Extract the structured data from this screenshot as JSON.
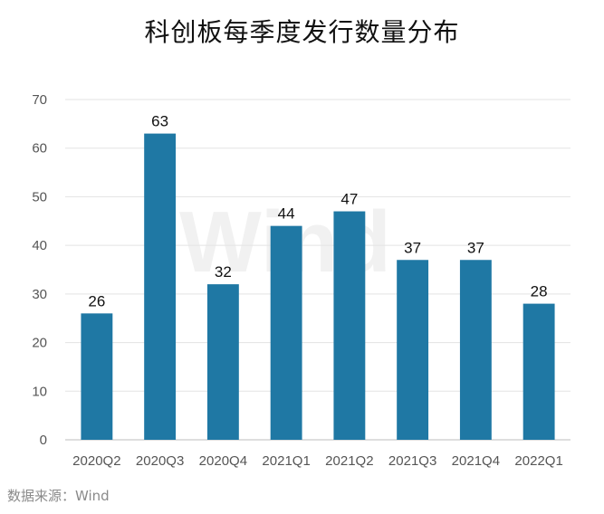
{
  "chart_data": {
    "type": "bar",
    "title": "科创板每季度发行数量分布",
    "categories": [
      "2020Q2",
      "2020Q3",
      "2020Q4",
      "2021Q1",
      "2021Q2",
      "2021Q3",
      "2021Q4",
      "2022Q1"
    ],
    "values": [
      26,
      63,
      32,
      44,
      47,
      37,
      37,
      28
    ],
    "yticks": [
      0,
      10,
      20,
      30,
      40,
      50,
      60,
      70
    ],
    "ylim": [
      0,
      70
    ],
    "xlabel": "",
    "ylabel": "",
    "grid": true,
    "legend": "none",
    "bar_color": "#1f78a4",
    "watermark": "Wind"
  },
  "source": "数据来源：Wind"
}
